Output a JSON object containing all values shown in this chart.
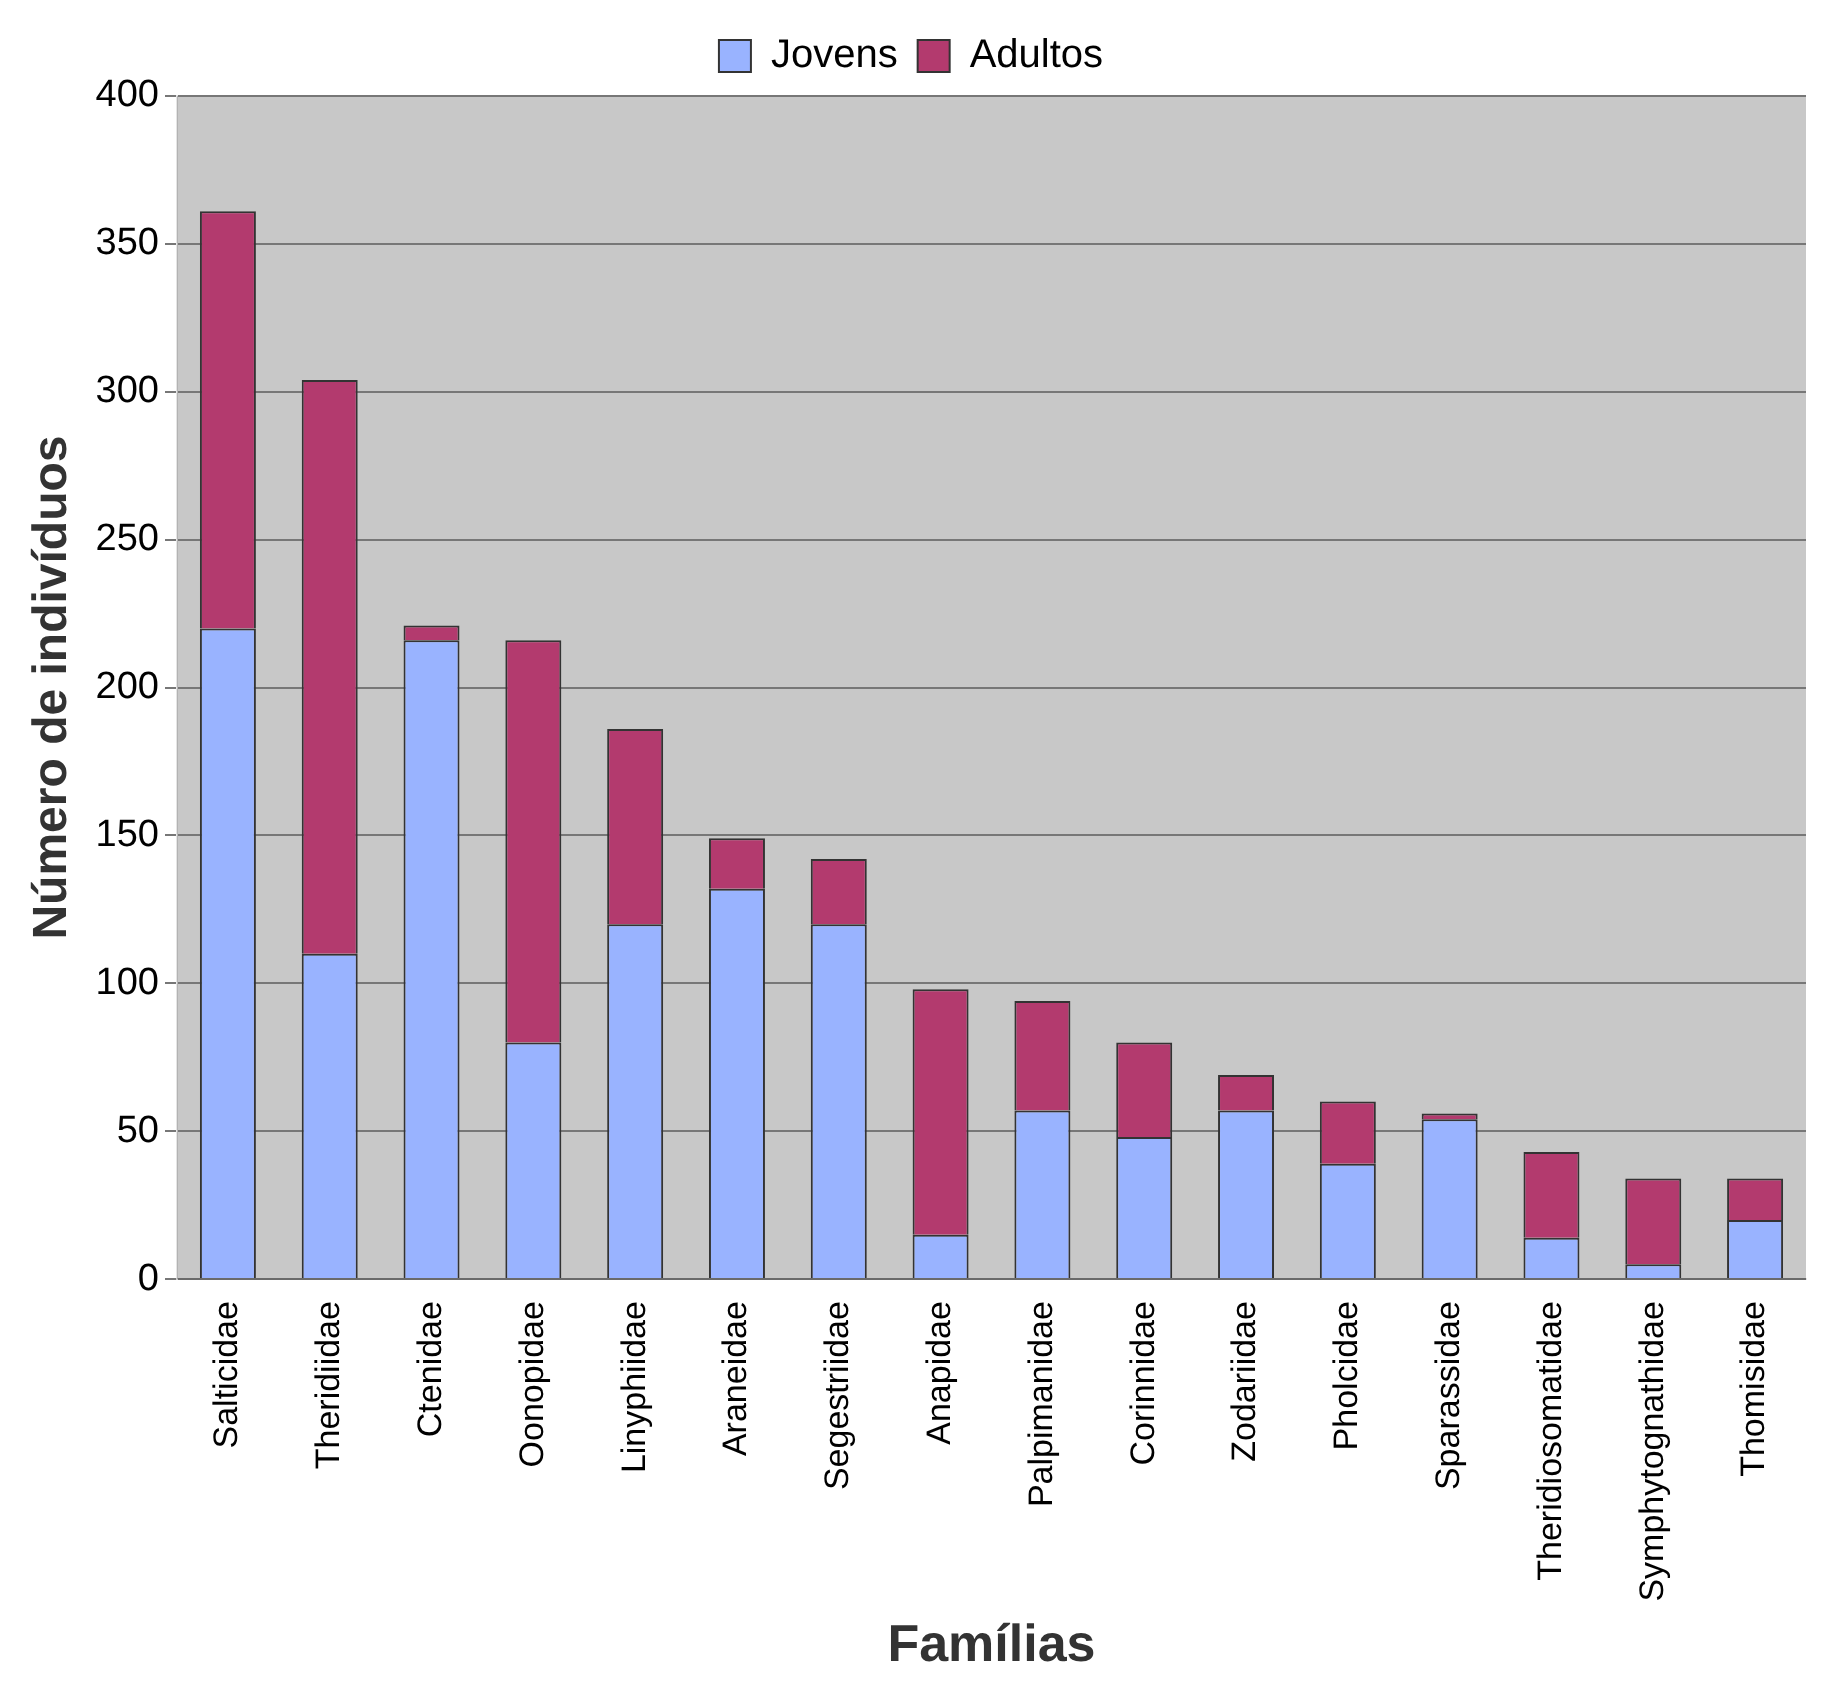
{
  "chart_data": {
    "type": "bar",
    "stacked": true,
    "xlabel": "Famílias",
    "ylabel": "Número de indivíduos",
    "categories": [
      "Salticidae",
      "Theridiidae",
      "Ctenidae",
      "Oonopidae",
      "Linyphiidae",
      "Araneidae",
      "Segestriidae",
      "Anapidae",
      "Palpimanidae",
      "Corinnidae",
      "Zodariidae",
      "Pholcidae",
      "Sparassidae",
      "Theridiosomatidae",
      "Symphytognathidae",
      "Thomisidae"
    ],
    "series": [
      {
        "name": "Jovens",
        "color": "#99b3ff",
        "values": [
          220,
          110,
          216,
          80,
          120,
          132,
          120,
          15,
          57,
          48,
          57,
          39,
          54,
          14,
          5,
          20
        ]
      },
      {
        "name": "Adultos",
        "color": "#b33a6e",
        "values": [
          141,
          194,
          5,
          136,
          66,
          17,
          22,
          83,
          37,
          32,
          12,
          21,
          2,
          29,
          29,
          14
        ]
      }
    ],
    "ylim": [
      0,
      400
    ],
    "yticks": [
      0,
      50,
      100,
      150,
      200,
      250,
      300,
      350,
      400
    ],
    "grid": "y",
    "legend": "top"
  }
}
